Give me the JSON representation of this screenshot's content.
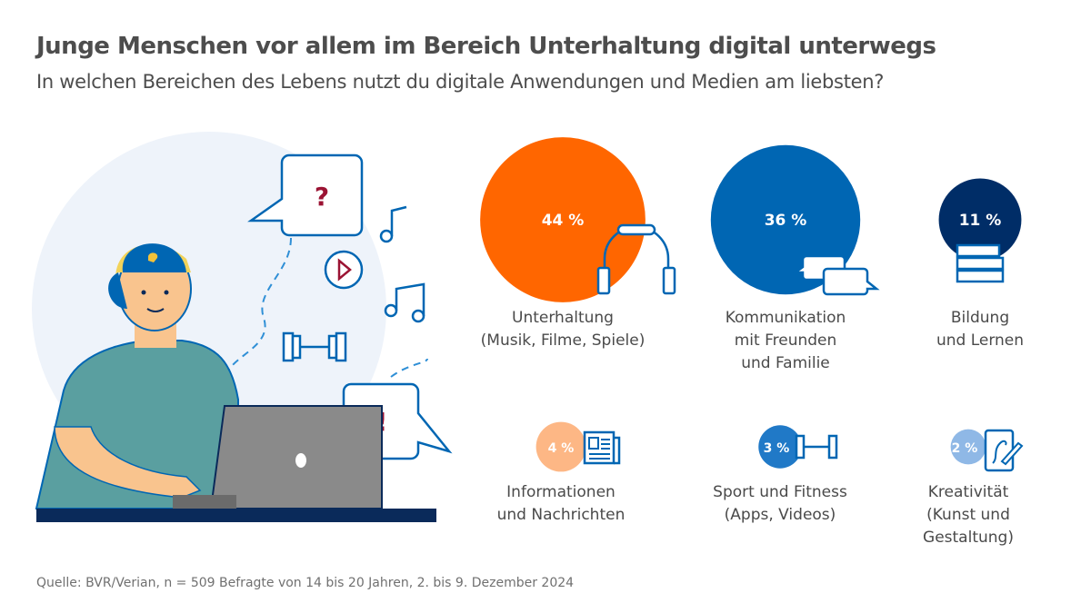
{
  "title": "Junge Menschen vor allem im Bereich Unterhaltung digital unterwegs",
  "subtitle": "In welchen Bereichen des Lebens nutzt du digitale Anwendungen und Medien am liebsten?",
  "source": "Quelle: BVR/Verian, n = 509 Befragte von 14 bis 20 Jahren, 2. bis 9. Dezember 2024",
  "illustration": {
    "question_mark": "?",
    "exclamation_mark": "!"
  },
  "chart_data": {
    "type": "bubble",
    "unit": "%",
    "categories": [
      {
        "label": "Unterhaltung\n(Musik, Filme, Spiele)",
        "value": 44,
        "value_label": "44 %",
        "color": "#ff6600",
        "icon": "headphones-icon"
      },
      {
        "label": "Kommunikation\nmit Freunden\nund Familie",
        "value": 36,
        "value_label": "36 %",
        "color": "#0066b3",
        "icon": "chat-bubbles-icon"
      },
      {
        "label": "Bildung\nund Lernen",
        "value": 11,
        "value_label": "11 %",
        "color": "#002d67",
        "icon": "books-icon"
      },
      {
        "label": "Informationen\nund Nachrichten",
        "value": 4,
        "value_label": "4 %",
        "color": "#fdb785",
        "icon": "newspaper-icon"
      },
      {
        "label": "Sport und Fitness\n(Apps, Videos)",
        "value": 3,
        "value_label": "3 %",
        "color": "#2079c7",
        "icon": "dumbbell-icon"
      },
      {
        "label": "Kreativität\n(Kunst und\nGestaltung)",
        "value": 2,
        "value_label": "2 %",
        "color": "#8fb8e6",
        "icon": "tablet-pen-icon"
      }
    ]
  }
}
